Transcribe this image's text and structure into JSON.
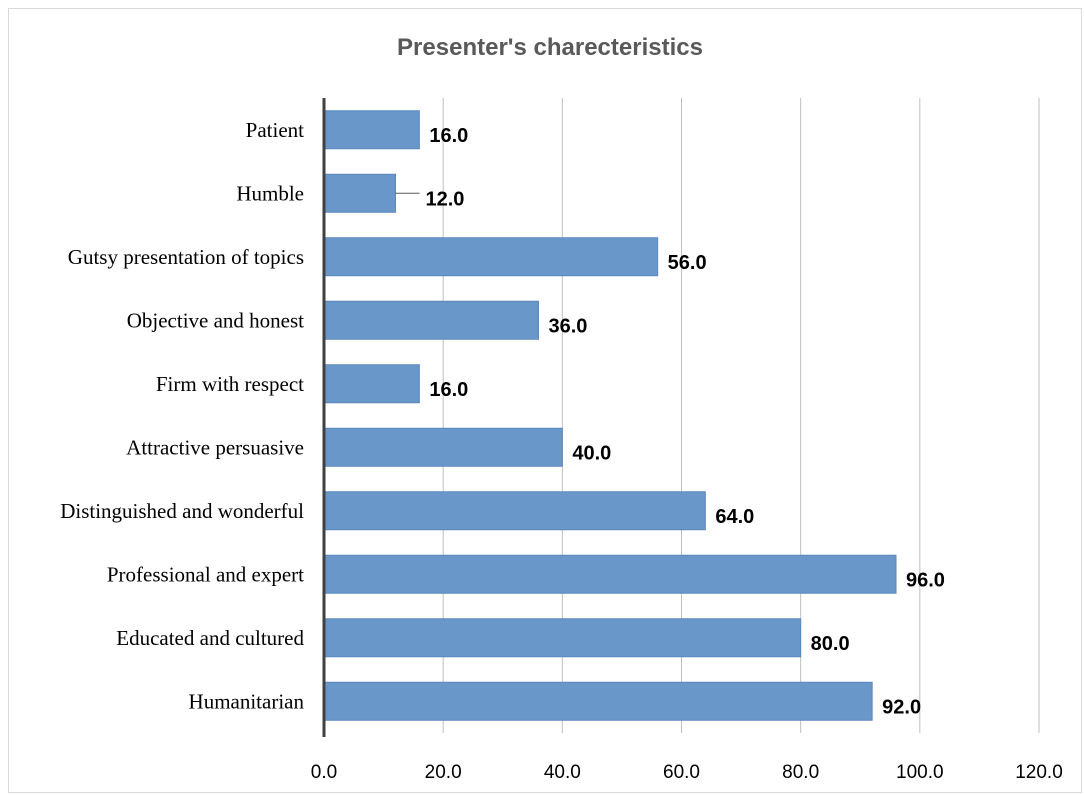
{
  "chart_data": {
    "type": "bar",
    "orientation": "horizontal",
    "title": "Presenter's charecteristics",
    "categories": [
      "Patient",
      "Humble",
      "Gutsy presentation of topics",
      "Objective and honest",
      "Firm with respect",
      "Attractive persuasive ",
      "Distinguished and wonderful",
      "Professional and expert",
      "Educated and cultured",
      "Humanitarian"
    ],
    "values": [
      16.0,
      12.0,
      56.0,
      36.0,
      16.0,
      40.0,
      64.0,
      96.0,
      80.0,
      92.0
    ],
    "value_labels": [
      "16.0",
      "12.0",
      "56.0",
      "36.0",
      "16.0",
      "40.0",
      "64.0",
      "96.0",
      "80.0",
      "92.0"
    ],
    "xlim": [
      0,
      120
    ],
    "x_ticks": [
      "0.0",
      "20.0",
      "40.0",
      "60.0",
      "80.0",
      "100.0",
      "120.0"
    ],
    "grid": "vertical",
    "bar_color": "#6a97c9",
    "bar_edge_color": "#5b88bd",
    "grid_color": "#bfbfbf",
    "axis_color": "#404040",
    "title_color": "#595959"
  }
}
